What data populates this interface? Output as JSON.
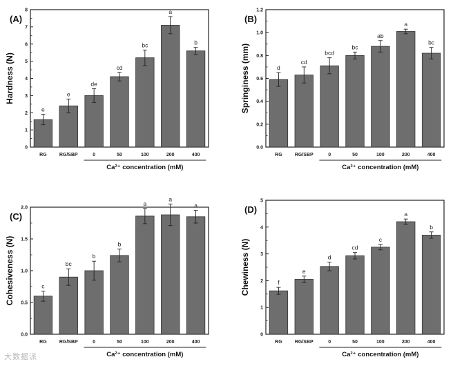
{
  "figure": {
    "watermark": "大数据派",
    "group_label": "Ca²⁺ concentration (mM)"
  },
  "chart_data": [
    {
      "panel": "(A)",
      "type": "bar",
      "ylabel": "Hardness (N)",
      "xlabel": "Ca²⁺ concentration (mM)",
      "categories": [
        "RG",
        "RG/SBP",
        "0",
        "50",
        "100",
        "200",
        "400"
      ],
      "values": [
        1.6,
        2.4,
        3.0,
        4.1,
        5.2,
        7.1,
        5.6
      ],
      "errors": [
        0.3,
        0.4,
        0.4,
        0.25,
        0.45,
        0.5,
        0.2
      ],
      "letters": [
        "e",
        "e",
        "de",
        "cd",
        "bc",
        "a",
        "b"
      ],
      "ylim": [
        0,
        8
      ],
      "yticks": [
        0,
        1,
        2,
        3,
        4,
        5,
        6,
        7,
        8
      ],
      "ytick_labels": [
        "0",
        "1",
        "2",
        "3",
        "4",
        "5",
        "6",
        "7",
        "8"
      ]
    },
    {
      "panel": "(B)",
      "type": "bar",
      "ylabel": "Springiness (mm)",
      "xlabel": "Ca²⁺ concentration (mM)",
      "categories": [
        "RG",
        "RG/SBP",
        "0",
        "50",
        "100",
        "200",
        "400"
      ],
      "values": [
        0.59,
        0.63,
        0.71,
        0.8,
        0.88,
        1.01,
        0.82
      ],
      "errors": [
        0.06,
        0.07,
        0.07,
        0.03,
        0.05,
        0.02,
        0.05
      ],
      "letters": [
        "d",
        "cd",
        "bcd",
        "bc",
        "ab",
        "a",
        "bc"
      ],
      "ylim": [
        0,
        1.2
      ],
      "yticks": [
        0,
        0.2,
        0.4,
        0.6,
        0.8,
        1.0,
        1.2
      ],
      "ytick_labels": [
        "0.0",
        "0.2",
        "0.4",
        "0.6",
        "0.8",
        "1.0",
        "1.2"
      ]
    },
    {
      "panel": "(C)",
      "type": "bar",
      "ylabel": "Cohesiveness (N)",
      "xlabel": "Ca²⁺ concentration (mM)",
      "categories": [
        "RG",
        "RG/SBP",
        "0",
        "50",
        "100",
        "200",
        "400"
      ],
      "values": [
        0.6,
        0.9,
        1.0,
        1.24,
        1.86,
        1.88,
        1.85
      ],
      "errors": [
        0.08,
        0.13,
        0.15,
        0.1,
        0.12,
        0.17,
        0.1
      ],
      "letters": [
        "c",
        "bc",
        "b",
        "b",
        "a",
        "a",
        "a"
      ],
      "ylim": [
        0,
        2.0
      ],
      "yticks": [
        0,
        0.5,
        1.0,
        1.5,
        2.0
      ],
      "ytick_labels": [
        "0.0",
        "0.5",
        "1.0",
        "1.5",
        "2.0"
      ]
    },
    {
      "panel": "(D)",
      "type": "bar",
      "ylabel": "Chewiness (N)",
      "xlabel": "Ca²⁺ concentration (mM)",
      "categories": [
        "RG",
        "RG/SBP",
        "0",
        "50",
        "100",
        "200",
        "400"
      ],
      "values": [
        1.62,
        2.05,
        2.53,
        2.93,
        3.25,
        4.2,
        3.7
      ],
      "errors": [
        0.13,
        0.12,
        0.16,
        0.12,
        0.1,
        0.1,
        0.12
      ],
      "letters": [
        "f",
        "e",
        "d",
        "cd",
        "c",
        "a",
        "b"
      ],
      "ylim": [
        0,
        5
      ],
      "yticks": [
        0,
        1,
        2,
        3,
        4,
        5
      ],
      "ytick_labels": [
        "0",
        "1",
        "2",
        "3",
        "4",
        "5"
      ]
    }
  ]
}
